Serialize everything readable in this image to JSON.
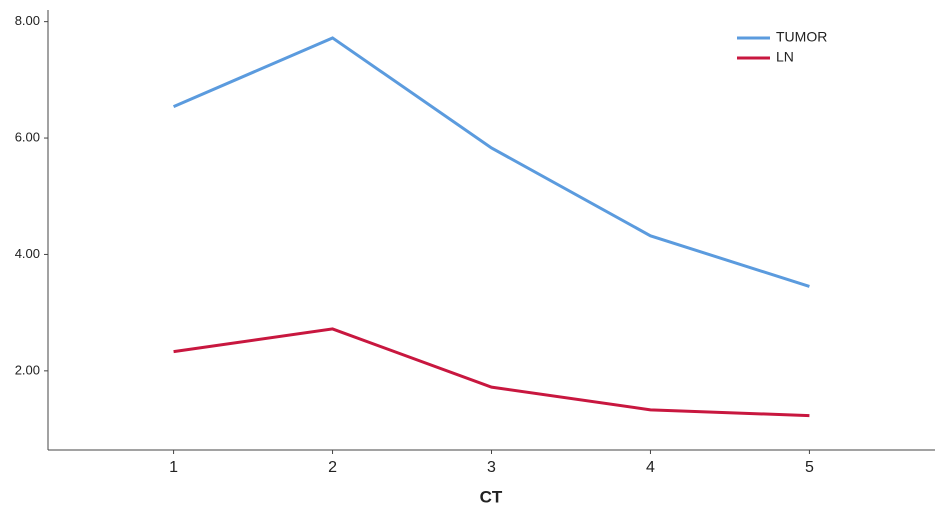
{
  "chart_data": {
    "type": "line",
    "x_label": "CT",
    "x": [
      1,
      2,
      3,
      4,
      5
    ],
    "xlim": [
      0.21,
      5.79
    ],
    "xticks": [
      1,
      2,
      3,
      4,
      5
    ],
    "ylim": [
      0.64,
      8.2
    ],
    "yticks": [
      {
        "value": 2,
        "label": "2.00"
      },
      {
        "value": 4,
        "label": "4.00"
      },
      {
        "value": 6,
        "label": "6.00"
      },
      {
        "value": 8,
        "label": "8.00"
      }
    ],
    "grid": false,
    "legend": "top-right",
    "series": [
      {
        "name": "TUMOR",
        "color": "#5b9bde",
        "values": [
          6.54,
          7.72,
          5.83,
          4.32,
          3.45
        ]
      },
      {
        "name": "LN",
        "color": "#c8173f",
        "values": [
          2.33,
          2.72,
          1.72,
          1.33,
          1.23
        ]
      }
    ]
  }
}
